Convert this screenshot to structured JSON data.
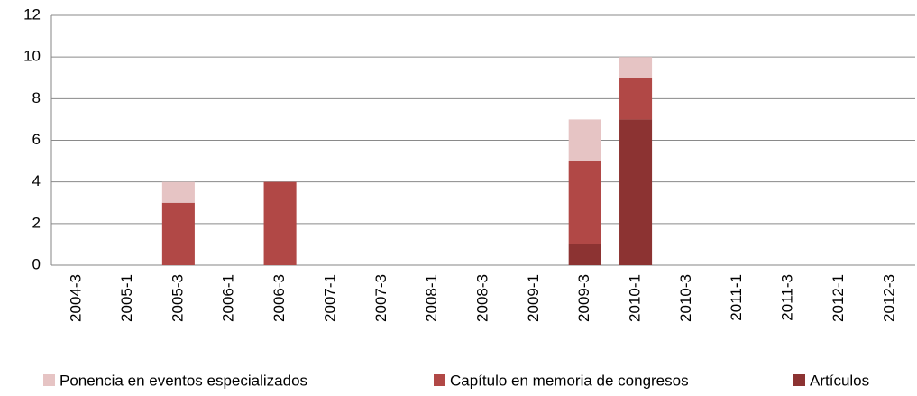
{
  "chart_data": {
    "type": "bar",
    "stacked": true,
    "categories": [
      "2004-3",
      "2005-1",
      "2005-3",
      "2006-1",
      "2006-3",
      "2007-1",
      "2007-3",
      "2008-1",
      "2008-3",
      "2009-1",
      "2009-3",
      "2010-1",
      "2010-3",
      "2011-1",
      "2011-3",
      "2012-1",
      "2012-3"
    ],
    "series": [
      {
        "name": "Ponencia en eventos especializados",
        "color": "#e6c4c4",
        "values": [
          0,
          0,
          1,
          0,
          0,
          0,
          0,
          0,
          0,
          0,
          2,
          1,
          0,
          0,
          0,
          0,
          0
        ]
      },
      {
        "name": "Capítulo en memoria de congresos",
        "color": "#b14846",
        "values": [
          0,
          0,
          3,
          0,
          4,
          0,
          0,
          0,
          0,
          0,
          4,
          2,
          0,
          0,
          0,
          0,
          0
        ]
      },
      {
        "name": "Artículos",
        "color": "#8c3332",
        "values": [
          0,
          0,
          0,
          0,
          0,
          0,
          0,
          0,
          0,
          0,
          1,
          7,
          0,
          0,
          0,
          0,
          0
        ]
      }
    ],
    "ylim": [
      0,
      12
    ],
    "yticks": [
      0,
      2,
      4,
      6,
      8,
      10,
      12
    ],
    "grid": true,
    "legend": "bottom"
  }
}
